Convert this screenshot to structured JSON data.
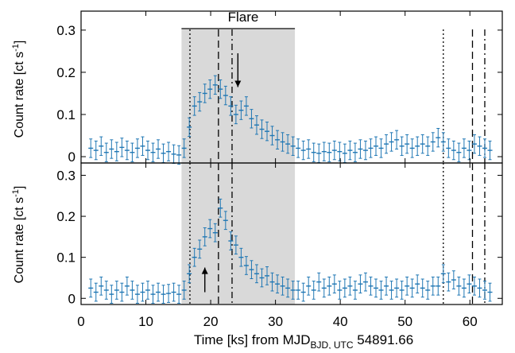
{
  "chart_data": {
    "type": "scatter",
    "xlabel": {
      "text": "Time [ks] from MJD",
      "sub": "BJD, UTC",
      "tail": " 54891.66"
    },
    "xlim": [
      0,
      65
    ],
    "x_ticks": [
      "0",
      "10",
      "20",
      "30",
      "40",
      "50",
      "60"
    ],
    "x_tick_values": [
      0,
      10,
      20,
      30,
      40,
      50,
      60
    ],
    "colors": {
      "data": "#1f77b4",
      "flare_band": "#d9d9d9",
      "axes": "#000000"
    },
    "flare": {
      "label": "Flare",
      "x_range": [
        15.5,
        33
      ]
    },
    "panels": [
      {
        "name": "top",
        "ylabel": {
          "text": "Count rate [ct s",
          "sup": "-1",
          "tail": "]"
        },
        "ylim": [
          -0.015,
          0.345
        ],
        "y_ticks": [
          "0",
          "0.1",
          "0.2",
          "0.3"
        ],
        "y_tick_values": [
          0,
          0.1,
          0.2,
          0.3
        ],
        "markers": [
          {
            "x": 16.8,
            "style": "dotted"
          },
          {
            "x": 21.2,
            "style": "dashed"
          },
          {
            "x": 23.3,
            "style": "dashdot"
          },
          {
            "x": 55.9,
            "style": "dotted"
          },
          {
            "x": 60.4,
            "style": "dashed"
          },
          {
            "x": 62.3,
            "style": "dashdot"
          }
        ],
        "arrow": {
          "x": 24.2,
          "y_from": 0.245,
          "y_to": 0.165,
          "direction": "down"
        },
        "series": [
          {
            "x": [
              1.5,
              2.3,
              3.1,
              3.9,
              4.7,
              5.5,
              6.3,
              7.1,
              7.9,
              8.7,
              9.5,
              10.3,
              11.1,
              11.9,
              12.7,
              13.5,
              14.3,
              15.1,
              15.9,
              16.7,
              17.5,
              18.3,
              19.1,
              19.9,
              20.7,
              21.5,
              22.3,
              23.1,
              23.9,
              24.7,
              25.5,
              26.3,
              27.1,
              27.9,
              28.7,
              29.5,
              30.3,
              31.1,
              31.9,
              32.7,
              33.5,
              34.3,
              35.1,
              35.9,
              36.7,
              37.5,
              38.3,
              39.1,
              39.9,
              40.7,
              41.5,
              42.3,
              43.1,
              43.9,
              44.7,
              45.5,
              46.3,
              47.1,
              47.9,
              48.7,
              49.5,
              50.3,
              51.1,
              51.9,
              52.7,
              53.5,
              54.3,
              55.1,
              55.9,
              56.7,
              57.5,
              58.3,
              59.1,
              59.9,
              60.7,
              61.5,
              62.3,
              63.1
            ],
            "y": [
              0.02,
              0.015,
              0.025,
              0.01,
              0.018,
              0.012,
              0.022,
              0.015,
              0.01,
              0.02,
              0.025,
              0.015,
              0.01,
              0.018,
              0.008,
              0.012,
              0.006,
              0.004,
              0.02,
              0.07,
              0.12,
              0.13,
              0.15,
              0.16,
              0.17,
              0.16,
              0.145,
              0.12,
              0.1,
              0.11,
              0.12,
              0.09,
              0.075,
              0.065,
              0.06,
              0.05,
              0.04,
              0.035,
              0.03,
              0.025,
              0.02,
              0.015,
              0.018,
              0.01,
              0.008,
              0.012,
              0.01,
              0.015,
              0.012,
              0.008,
              0.015,
              0.01,
              0.018,
              0.015,
              0.02,
              0.025,
              0.02,
              0.03,
              0.035,
              0.04,
              0.025,
              0.03,
              0.02,
              0.025,
              0.03,
              0.025,
              0.035,
              0.045,
              0.035,
              0.02,
              0.015,
              0.01,
              0.02,
              0.015,
              0.03,
              0.025,
              0.02,
              0.015
            ],
            "err": 0.022
          }
        ]
      },
      {
        "name": "bottom",
        "ylabel": {
          "text": "Count rate [ct s",
          "sup": "-1",
          "tail": "]"
        },
        "ylim": [
          -0.015,
          0.33
        ],
        "y_ticks": [
          "0",
          "0.1",
          "0.2",
          "0.3"
        ],
        "y_tick_values": [
          0,
          0.1,
          0.2,
          0.3
        ],
        "markers": [
          {
            "x": 16.8,
            "style": "dotted"
          },
          {
            "x": 21.2,
            "style": "dashed"
          },
          {
            "x": 23.3,
            "style": "dashdot"
          },
          {
            "x": 55.9,
            "style": "dotted"
          },
          {
            "x": 60.4,
            "style": "dashed"
          },
          {
            "x": 62.3,
            "style": "dashdot"
          }
        ],
        "arrow": {
          "x": 19.1,
          "y_from": 0.015,
          "y_to": 0.075,
          "direction": "up"
        },
        "series": [
          {
            "x": [
              1.5,
              2.3,
              3.1,
              3.9,
              4.7,
              5.5,
              6.3,
              7.1,
              7.9,
              8.7,
              9.5,
              10.3,
              11.1,
              11.9,
              12.7,
              13.5,
              14.3,
              15.1,
              15.9,
              16.7,
              17.5,
              18.3,
              19.1,
              19.9,
              20.7,
              21.5,
              22.3,
              23.1,
              23.9,
              24.7,
              25.5,
              26.3,
              27.1,
              27.9,
              28.7,
              29.5,
              30.3,
              31.1,
              31.9,
              32.7,
              33.5,
              34.3,
              35.1,
              35.9,
              36.7,
              37.5,
              38.3,
              39.1,
              39.9,
              40.7,
              41.5,
              42.3,
              43.1,
              43.9,
              44.7,
              45.5,
              46.3,
              47.1,
              47.9,
              48.7,
              49.5,
              50.3,
              51.1,
              51.9,
              52.7,
              53.5,
              54.3,
              55.1,
              55.9,
              56.7,
              57.5,
              58.3,
              59.1,
              59.9,
              60.7,
              61.5,
              62.3,
              63.1
            ],
            "y": [
              0.025,
              0.015,
              0.03,
              0.02,
              0.01,
              0.02,
              0.015,
              0.03,
              0.02,
              0.01,
              0.015,
              0.02,
              0.01,
              0.015,
              0.01,
              0.012,
              0.015,
              0.01,
              0.02,
              0.06,
              0.1,
              0.12,
              0.15,
              0.17,
              0.16,
              0.22,
              0.19,
              0.14,
              0.13,
              0.1,
              0.08,
              0.07,
              0.06,
              0.05,
              0.055,
              0.04,
              0.035,
              0.03,
              0.025,
              0.02,
              0.02,
              0.015,
              0.03,
              0.02,
              0.04,
              0.025,
              0.03,
              0.035,
              0.02,
              0.025,
              0.03,
              0.02,
              0.035,
              0.04,
              0.03,
              0.025,
              0.02,
              0.03,
              0.02,
              0.025,
              0.02,
              0.03,
              0.025,
              0.035,
              0.025,
              0.02,
              0.03,
              0.03,
              0.06,
              0.04,
              0.045,
              0.03,
              0.025,
              0.035,
              0.03,
              0.025,
              0.02,
              0.015
            ],
            "err": 0.022
          }
        ]
      }
    ]
  }
}
